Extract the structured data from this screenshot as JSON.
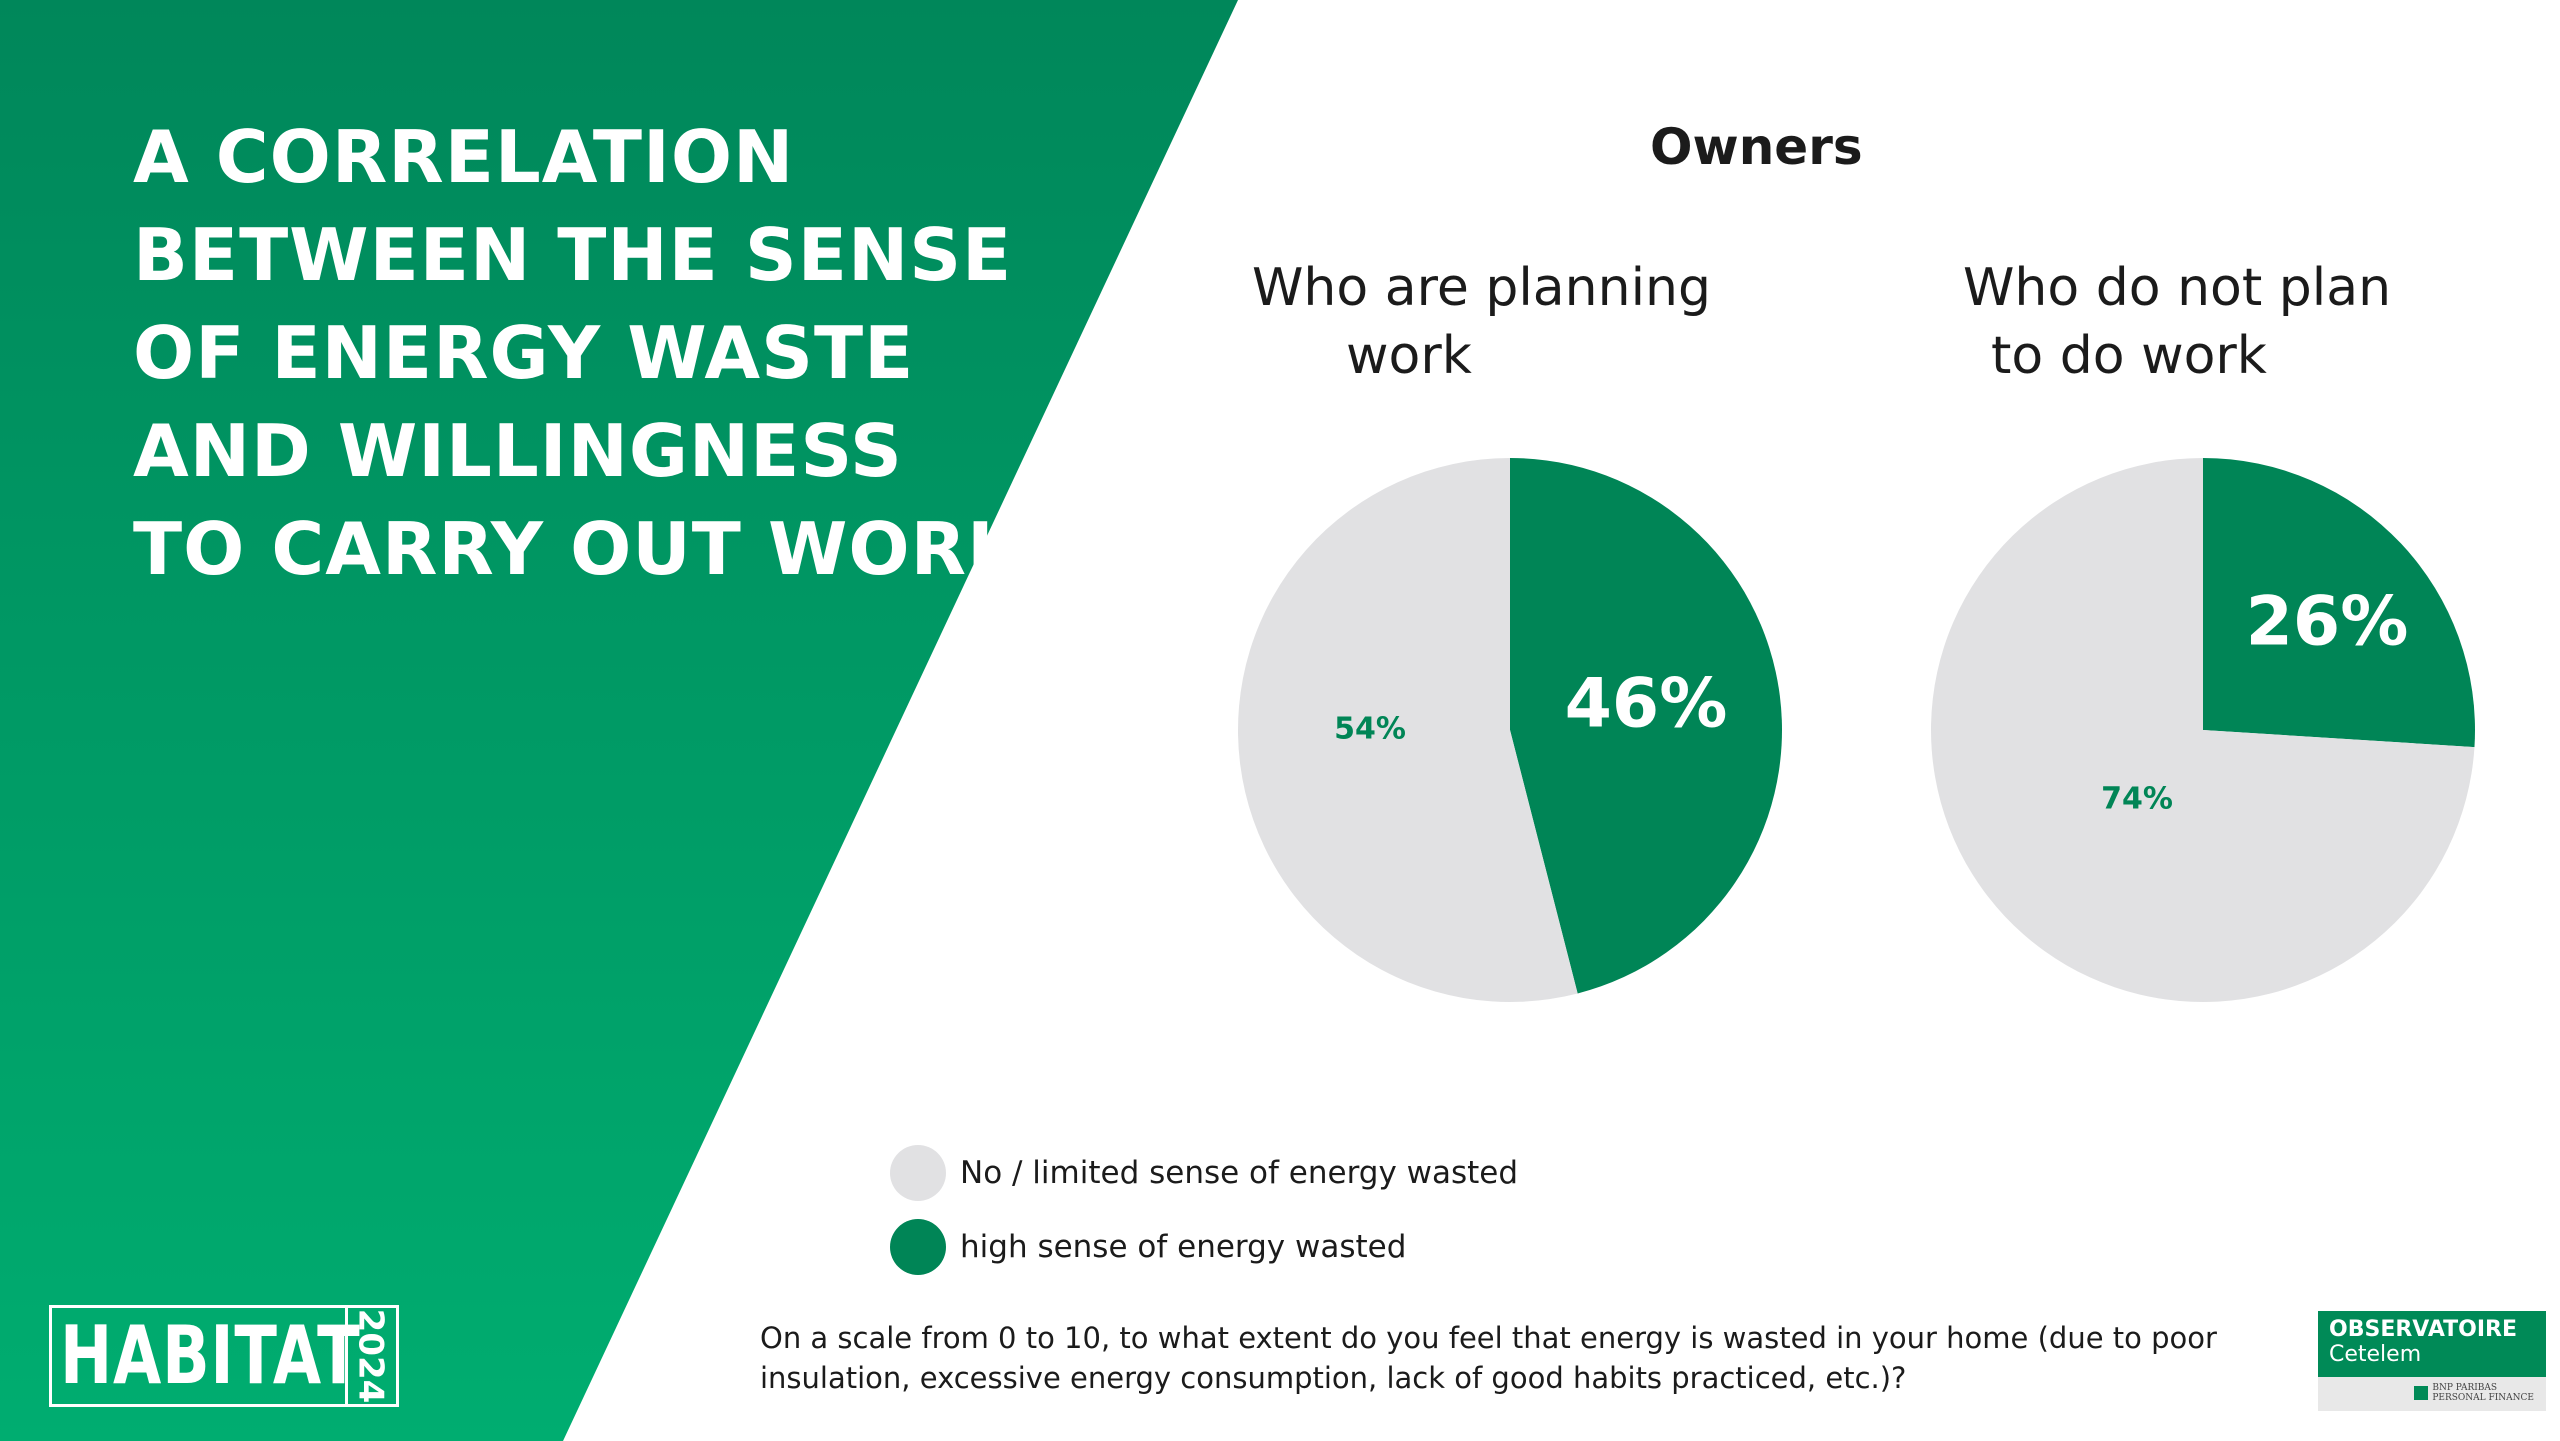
{
  "title_lines": [
    "A CORRELATION",
    "BETWEEN THE SENSE",
    "OF ENERGY WASTE",
    "AND WILLINGNESS",
    "TO CARRY OUT WORK"
  ],
  "heading": "Owners",
  "chart_data": [
    {
      "type": "pie",
      "title": "Who are planning work",
      "title_lines": [
        "Who are planning",
        "work"
      ],
      "labels": [
        "high sense of energy wasted",
        "No / limited sense of energy wasted"
      ],
      "values": [
        46,
        54
      ],
      "value_labels": [
        "46%",
        "54%"
      ]
    },
    {
      "type": "pie",
      "title": "Who do not plan to do work",
      "title_lines": [
        "Who do not plan",
        "to do work"
      ],
      "labels": [
        "high sense of energy wasted",
        "No / limited sense of energy wasted"
      ],
      "values": [
        26,
        74
      ],
      "value_labels": [
        "26%",
        "74%"
      ]
    }
  ],
  "legend": [
    {
      "label": "No / limited sense of energy wasted",
      "color": "#e1e1e3"
    },
    {
      "label": "high sense of energy wasted",
      "color": "#008556"
    }
  ],
  "question_lines": [
    "On a scale from 0 to 10, to what extent do you feel that energy is wasted in your home (due to poor",
    "insulation, excessive energy consumption,  lack of good habits practiced, etc.)?"
  ],
  "logo_habitat": {
    "word": "HABITAT",
    "year": "2024"
  },
  "logo_observatoire": {
    "line1": "OBSERVATOIRE",
    "line2": "Cetelem",
    "line3": "BNP PARIBAS",
    "line4": "PERSONAL FINANCE"
  },
  "colors": {
    "panel_top": "#00875a",
    "panel_bottom": "#00ad70",
    "high": "#008556",
    "low": "#e1e1e3",
    "small_label": "#008556"
  }
}
